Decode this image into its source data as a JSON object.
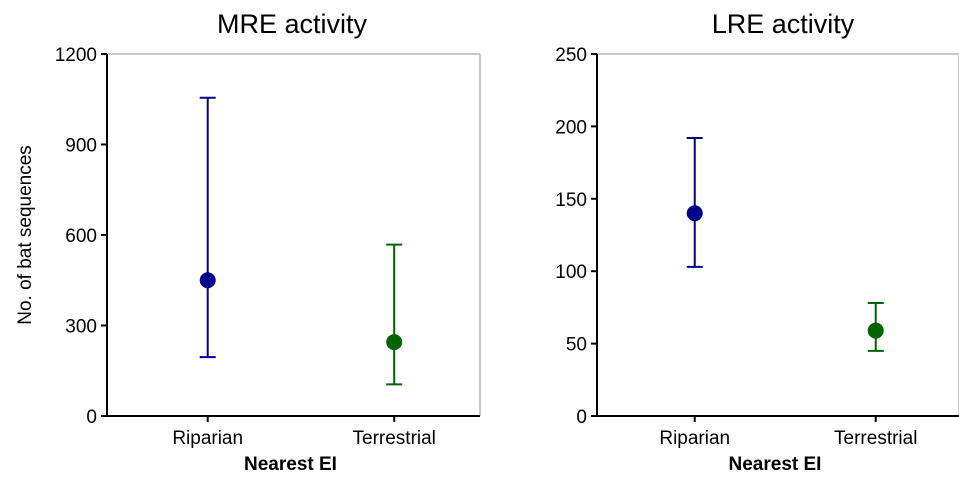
{
  "chart_data": [
    {
      "type": "scatter",
      "title": "MRE activity",
      "xlabel": "Nearest EI",
      "ylabel": "No. of bat sequences",
      "categories": [
        "Riparian",
        "Terrestrial"
      ],
      "ylim": [
        0,
        1200
      ],
      "yticks": [
        "0",
        "300",
        "600",
        "900",
        "1200"
      ],
      "points": [
        {
          "category": "Riparian",
          "value": 450,
          "lower": 195,
          "upper": 1055,
          "color": "#00008B"
        },
        {
          "category": "Terrestrial",
          "value": 245,
          "lower": 105,
          "upper": 568,
          "color": "#006400"
        }
      ],
      "grid": false
    },
    {
      "type": "scatter",
      "title": "LRE activity",
      "xlabel": "Nearest EI",
      "ylabel": "",
      "categories": [
        "Riparian",
        "Terrestrial"
      ],
      "ylim": [
        0,
        250
      ],
      "yticks": [
        "0",
        "50",
        "100",
        "150",
        "200",
        "250"
      ],
      "points": [
        {
          "category": "Riparian",
          "value": 140,
          "lower": 103,
          "upper": 192,
          "color": "#00008B"
        },
        {
          "category": "Terrestrial",
          "value": 59,
          "lower": 45,
          "upper": 78,
          "color": "#006400"
        }
      ],
      "grid": false
    }
  ]
}
